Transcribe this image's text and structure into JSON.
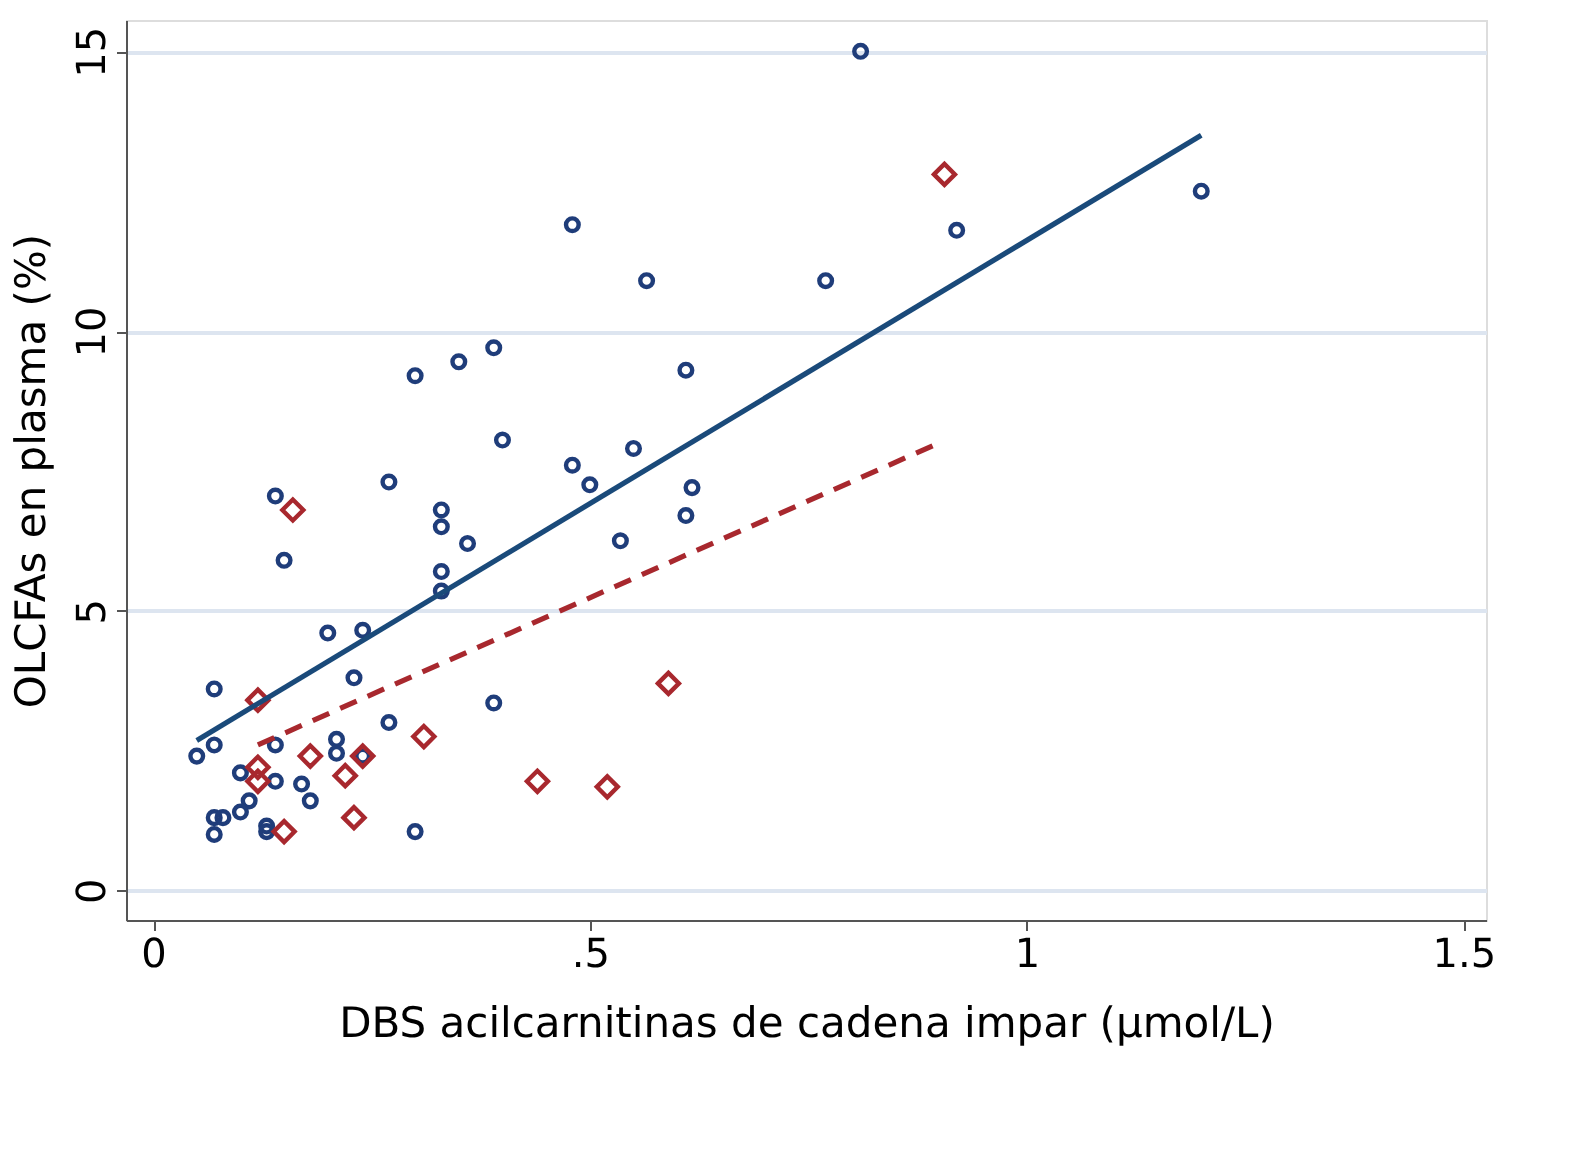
{
  "chart_data": {
    "type": "scatter",
    "xlabel": "DBS acilcarnitinas de cadena impar (µmol/L)",
    "ylabel": "OLCFAs en plasma (%)",
    "xlim": [
      -0.031,
      1.526
    ],
    "ylim": [
      -0.53,
      15.56
    ],
    "xticks": [
      0,
      {
        "value": 0.5,
        "label": ".5"
      },
      1,
      1.5
    ],
    "yticks": [
      0,
      5,
      10,
      15
    ],
    "grid": "y",
    "series": [
      {
        "marker": "circle",
        "color": "#1f3d7a",
        "x": [
          0.81,
          1.2,
          0.92,
          0.48,
          0.565,
          0.77,
          0.39,
          0.35,
          0.3,
          0.61,
          0.4,
          0.55,
          0.48,
          0.5,
          0.617,
          0.27,
          0.14,
          0.33,
          0.33,
          0.61,
          0.535,
          0.36,
          0.15,
          0.33,
          0.33,
          0.2,
          0.24,
          0.07,
          0.23,
          0.39,
          0.27,
          0.05,
          0.07,
          0.14,
          0.21,
          0.21,
          0.24,
          0.1,
          0.14,
          0.17,
          0.18,
          0.11,
          0.1,
          0.07,
          0.08,
          0.13,
          0.13,
          0.07,
          0.3
        ],
        "values": [
          15.0,
          12.5,
          11.8,
          11.9,
          10.9,
          10.9,
          9.7,
          9.45,
          9.2,
          9.3,
          8.05,
          7.9,
          7.6,
          7.25,
          7.2,
          7.3,
          7.05,
          6.8,
          6.5,
          6.7,
          6.25,
          6.2,
          5.9,
          5.7,
          5.35,
          4.6,
          4.65,
          3.6,
          3.8,
          3.35,
          3.0,
          2.4,
          2.6,
          2.6,
          2.7,
          2.45,
          2.4,
          2.1,
          1.95,
          1.9,
          1.6,
          1.6,
          1.4,
          1.3,
          1.3,
          1.15,
          1.05,
          1.0,
          1.05
        ]
      },
      {
        "marker": "diamond",
        "color": "#a8282e",
        "x": [
          0.906,
          0.16,
          0.12,
          0.59,
          0.31,
          0.18,
          0.24,
          0.22,
          0.12,
          0.12,
          0.44,
          0.52,
          0.23,
          0.15
        ],
        "values": [
          12.8,
          6.8,
          3.4,
          3.7,
          2.75,
          2.4,
          2.4,
          2.05,
          2.2,
          1.95,
          1.95,
          1.85,
          1.3,
          1.05
        ]
      },
      {
        "type": "line",
        "line_style": "solid",
        "color": "#1a4a7a",
        "x": [
          0.05,
          1.2
        ],
        "values": [
          2.68,
          13.5
        ]
      },
      {
        "type": "line",
        "line_style": "dashed",
        "color": "#a8282e",
        "x": [
          0.12,
          0.9
        ],
        "values": [
          2.6,
          8.0
        ]
      }
    ]
  }
}
